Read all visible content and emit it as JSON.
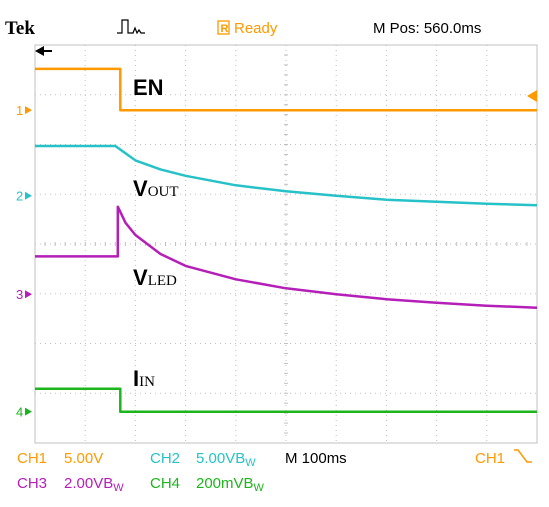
{
  "header": {
    "brand": "Tek",
    "status": "Ready",
    "mpos": "M Pos: 560.0ms"
  },
  "colors": {
    "ch1": "#ff9900",
    "ch2": "#27c1c8",
    "ch3": "#b41fb8",
    "ch4": "#1eb41e",
    "grid": "#c0c0c0",
    "header_text": "#000000"
  },
  "annotations": {
    "en": "EN",
    "vout_main": "V",
    "vout_sub": "OUT",
    "vled_main": "V",
    "vled_sub": "LED",
    "iin_main": "I",
    "iin_sub": "IN"
  },
  "channel_markers": [
    "1",
    "2",
    "3",
    "4"
  ],
  "footer": {
    "ch1_label": "CH1",
    "ch1_scale": "5.00V",
    "ch2_label": "CH2",
    "ch2_scale": "5.00VB",
    "ch2_suffix": "W",
    "timebase": "M 100ms",
    "trig_label": "CH1",
    "ch3_label": "CH3",
    "ch3_scale": "2.00VB",
    "ch3_suffix": "W",
    "ch4_label": "CH4",
    "ch4_scale": "200mVB",
    "ch4_suffix": "W"
  },
  "chart_data": {
    "type": "line",
    "x_unit": "divisions",
    "y_unit": "divisions",
    "xlim": [
      0,
      10
    ],
    "ylim": [
      0,
      8
    ],
    "grid": true,
    "series": [
      {
        "name": "EN",
        "channel": "ch1",
        "x": [
          0,
          1.7,
          1.7,
          10
        ],
        "y": [
          7.52,
          7.52,
          6.69,
          6.69
        ]
      },
      {
        "name": "VOUT",
        "channel": "ch2",
        "x": [
          0,
          1.6,
          2.0,
          2.5,
          3.0,
          4.0,
          5.0,
          6.0,
          7.0,
          8.0,
          9.0,
          10
        ],
        "y": [
          5.97,
          5.97,
          5.68,
          5.5,
          5.37,
          5.18,
          5.06,
          4.97,
          4.89,
          4.85,
          4.81,
          4.78
        ]
      },
      {
        "name": "VLED",
        "channel": "ch3",
        "x": [
          0,
          1.65,
          1.65,
          1.8,
          2.0,
          2.5,
          3.0,
          4.0,
          5.0,
          6.0,
          7.0,
          8.0,
          9.0,
          10
        ],
        "y": [
          3.75,
          3.75,
          4.75,
          4.43,
          4.18,
          3.8,
          3.56,
          3.29,
          3.11,
          2.99,
          2.89,
          2.82,
          2.76,
          2.72
        ]
      },
      {
        "name": "IIN",
        "channel": "ch4",
        "x": [
          0,
          1.7,
          1.7,
          10
        ],
        "y": [
          1.09,
          1.09,
          0.63,
          0.63
        ]
      }
    ]
  }
}
